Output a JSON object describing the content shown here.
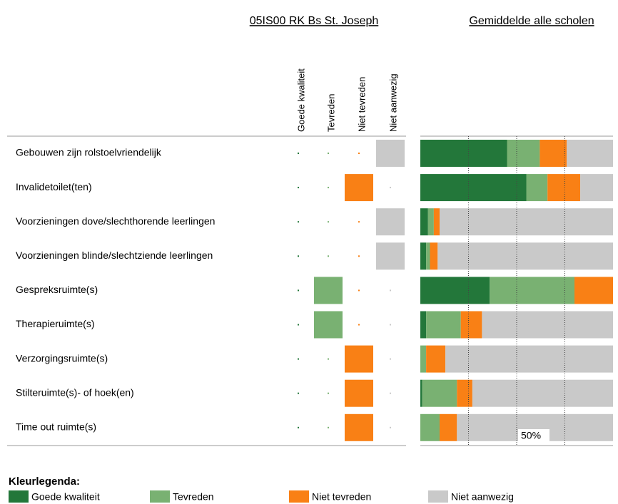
{
  "chart_data": [
    {
      "type": "matrix",
      "title": "05IS00 RK Bs St. Joseph",
      "categories": [
        "Gebouwen zijn rolstoelvriendelijk",
        "Invalidetoilet(ten)",
        "Voorzieningen dove/slechthorende leerlingen",
        "Voorzieningen blinde/slechtziende leerlingen",
        "Gespreksruimte(s)",
        "Therapieruimte(s)",
        "Verzorgingsruimte(s)",
        "Stilteruimte(s)- of hoek(en)",
        "Time out ruimte(s)"
      ],
      "series": [
        {
          "name": "Goede kwaliteit",
          "color": "#23773a",
          "values": [
            0,
            0,
            0,
            0,
            0,
            0,
            0,
            0,
            0
          ]
        },
        {
          "name": "Tevreden",
          "color": "#79b172",
          "values": [
            0,
            0,
            0,
            0,
            100,
            100,
            0,
            0,
            0
          ]
        },
        {
          "name": "Niet tevreden",
          "color": "#f98015",
          "values": [
            0,
            100,
            0,
            0,
            0,
            0,
            100,
            100,
            100
          ]
        },
        {
          "name": "Niet aanwezig",
          "color": "#c9c9c9",
          "values": [
            100,
            0,
            100,
            100,
            0,
            0,
            0,
            0,
            0
          ]
        }
      ]
    },
    {
      "type": "stacked-bar",
      "title": "Gemiddelde alle scholen",
      "series": [
        {
          "name": "Goede kwaliteit",
          "color": "#23773a",
          "values": [
            45,
            55,
            4,
            3,
            36,
            3,
            0,
            1,
            0
          ]
        },
        {
          "name": "Tevreden",
          "color": "#79b172",
          "values": [
            17,
            11,
            3,
            2,
            44,
            18,
            3,
            18,
            10
          ]
        },
        {
          "name": "Niet tevreden",
          "color": "#f98015",
          "values": [
            14,
            17,
            3,
            4,
            20,
            11,
            10,
            8,
            9
          ]
        },
        {
          "name": "Niet aanwezig",
          "color": "#c9c9c9",
          "values": [
            24,
            17,
            90,
            91,
            0,
            68,
            87,
            73,
            81
          ]
        }
      ],
      "xlim": [
        0,
        100
      ],
      "gridlines": [
        25,
        50,
        75
      ],
      "xticks": [
        {
          "value": 50,
          "label": "50%"
        }
      ],
      "legend": {
        "title": "Kleurlegenda:",
        "position": "bottom-left"
      }
    }
  ]
}
